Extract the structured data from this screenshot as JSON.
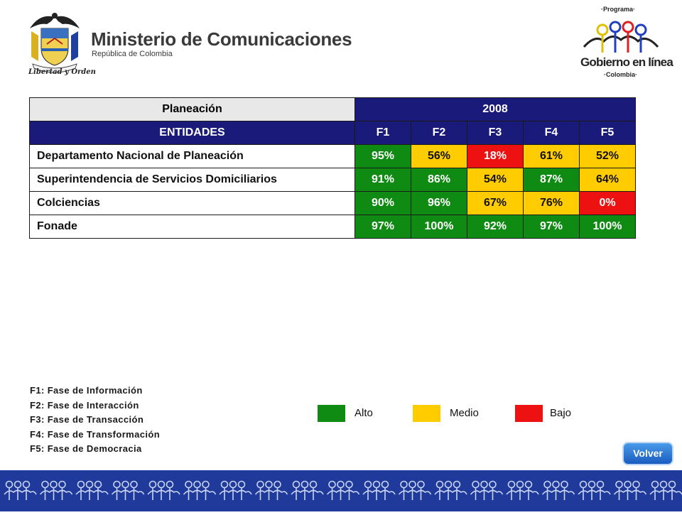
{
  "header": {
    "ministry_title": "Ministerio de Comunicaciones",
    "ministry_subtitle": "República de Colombia",
    "shield_motto": "Libertad y Orden",
    "gel_programa": "·Programa·",
    "gel_title": "Gobierno en línea",
    "gel_colombia": "·Colombia·"
  },
  "table": {
    "title": "Planeación",
    "year": "2008",
    "entities_header": "ENTIDADES",
    "phase_headers": [
      "F1",
      "F2",
      "F3",
      "F4",
      "F5"
    ],
    "rows": [
      {
        "name": "Departamento Nacional de Planeación",
        "values": [
          "95%",
          "56%",
          "18%",
          "61%",
          "52%"
        ],
        "levels": [
          "alto",
          "medio",
          "bajo",
          "medio",
          "medio"
        ]
      },
      {
        "name": "Superintendencia de Servicios Domiciliarios",
        "values": [
          "91%",
          "86%",
          "54%",
          "87%",
          "64%"
        ],
        "levels": [
          "alto",
          "alto",
          "medio",
          "alto",
          "medio"
        ]
      },
      {
        "name": "Colciencias",
        "values": [
          "90%",
          "96%",
          "67%",
          "76%",
          "0%"
        ],
        "levels": [
          "alto",
          "alto",
          "medio",
          "medio",
          "bajo"
        ]
      },
      {
        "name": "Fonade",
        "values": [
          "97%",
          "100%",
          "92%",
          "97%",
          "100%"
        ],
        "levels": [
          "alto",
          "alto",
          "alto",
          "alto",
          "alto"
        ]
      }
    ]
  },
  "notes": [
    "F1: Fase de Información",
    "F2: Fase de Interacción",
    "F3: Fase de Transacción",
    "F4: Fase de Transformación",
    "F5: Fase de Democracia"
  ],
  "legend": [
    {
      "label": "Alto",
      "color": "#0f8a12"
    },
    {
      "label": "Medio",
      "color": "#ffcc00"
    },
    {
      "label": "Bajo",
      "color": "#ee1111"
    }
  ],
  "volver_label": "Volver",
  "colors": {
    "header_dark": "#1a1a7a",
    "band": "#1f3a9a",
    "alto": "#0f8a12",
    "medio": "#ffcc00",
    "bajo": "#ee1111"
  }
}
